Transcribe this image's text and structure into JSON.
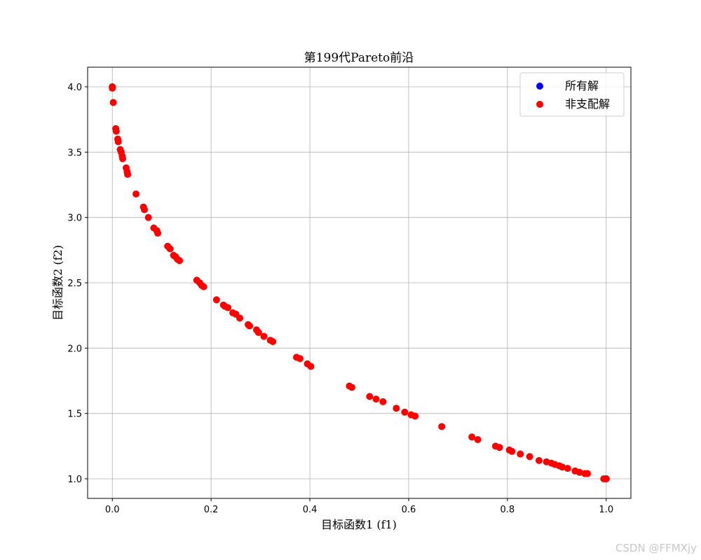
{
  "chart_data": {
    "type": "scatter",
    "title": "第199代Pareto前沿",
    "xlabel": "目标函数1 (f1)",
    "ylabel": "目标函数2 (f2)",
    "xlim": [
      -0.05,
      1.05
    ],
    "ylim": [
      0.85,
      4.15
    ],
    "xticks": [
      0.0,
      0.2,
      0.4,
      0.6,
      0.8,
      1.0
    ],
    "yticks": [
      1.0,
      1.5,
      2.0,
      2.5,
      3.0,
      3.5,
      4.0
    ],
    "grid": true,
    "legend_position": "top-right",
    "series": [
      {
        "name": "所有解",
        "color": "#0000ff",
        "points": [
          [
            0.0,
            4.0
          ],
          [
            1.0,
            1.0
          ]
        ]
      },
      {
        "name": "非支配解",
        "color": "#ff0000",
        "points": [
          [
            0.0,
            4.0
          ],
          [
            0.0,
            3.99
          ],
          [
            0.002,
            3.88
          ],
          [
            0.007,
            3.68
          ],
          [
            0.008,
            3.66
          ],
          [
            0.011,
            3.6
          ],
          [
            0.012,
            3.58
          ],
          [
            0.016,
            3.52
          ],
          [
            0.018,
            3.5
          ],
          [
            0.02,
            3.47
          ],
          [
            0.021,
            3.45
          ],
          [
            0.028,
            3.38
          ],
          [
            0.03,
            3.35
          ],
          [
            0.031,
            3.33
          ],
          [
            0.048,
            3.18
          ],
          [
            0.063,
            3.08
          ],
          [
            0.065,
            3.06
          ],
          [
            0.073,
            3.0
          ],
          [
            0.084,
            2.92
          ],
          [
            0.09,
            2.9
          ],
          [
            0.092,
            2.88
          ],
          [
            0.112,
            2.78
          ],
          [
            0.117,
            2.76
          ],
          [
            0.124,
            2.71
          ],
          [
            0.128,
            2.7
          ],
          [
            0.132,
            2.68
          ],
          [
            0.136,
            2.67
          ],
          [
            0.171,
            2.52
          ],
          [
            0.177,
            2.5
          ],
          [
            0.181,
            2.48
          ],
          [
            0.185,
            2.47
          ],
          [
            0.211,
            2.37
          ],
          [
            0.225,
            2.33
          ],
          [
            0.228,
            2.32
          ],
          [
            0.234,
            2.31
          ],
          [
            0.244,
            2.27
          ],
          [
            0.25,
            2.26
          ],
          [
            0.258,
            2.23
          ],
          [
            0.275,
            2.18
          ],
          [
            0.278,
            2.17
          ],
          [
            0.292,
            2.14
          ],
          [
            0.296,
            2.12
          ],
          [
            0.307,
            2.09
          ],
          [
            0.32,
            2.06
          ],
          [
            0.325,
            2.05
          ],
          [
            0.373,
            1.93
          ],
          [
            0.38,
            1.92
          ],
          [
            0.395,
            1.88
          ],
          [
            0.402,
            1.86
          ],
          [
            0.48,
            1.71
          ],
          [
            0.485,
            1.7
          ],
          [
            0.521,
            1.63
          ],
          [
            0.534,
            1.61
          ],
          [
            0.548,
            1.59
          ],
          [
            0.575,
            1.54
          ],
          [
            0.592,
            1.51
          ],
          [
            0.605,
            1.49
          ],
          [
            0.613,
            1.48
          ],
          [
            0.667,
            1.4
          ],
          [
            0.728,
            1.32
          ],
          [
            0.74,
            1.3
          ],
          [
            0.776,
            1.25
          ],
          [
            0.784,
            1.24
          ],
          [
            0.804,
            1.22
          ],
          [
            0.809,
            1.21
          ],
          [
            0.826,
            1.19
          ],
          [
            0.845,
            1.17
          ],
          [
            0.864,
            1.14
          ],
          [
            0.879,
            1.13
          ],
          [
            0.889,
            1.12
          ],
          [
            0.896,
            1.11
          ],
          [
            0.905,
            1.1
          ],
          [
            0.911,
            1.09
          ],
          [
            0.922,
            1.08
          ],
          [
            0.937,
            1.06
          ],
          [
            0.946,
            1.05
          ],
          [
            0.957,
            1.04
          ],
          [
            0.962,
            1.04
          ],
          [
            0.995,
            1.0
          ],
          [
            1.0,
            1.0
          ]
        ]
      }
    ]
  },
  "watermark": "CSDN @FFMXjy"
}
